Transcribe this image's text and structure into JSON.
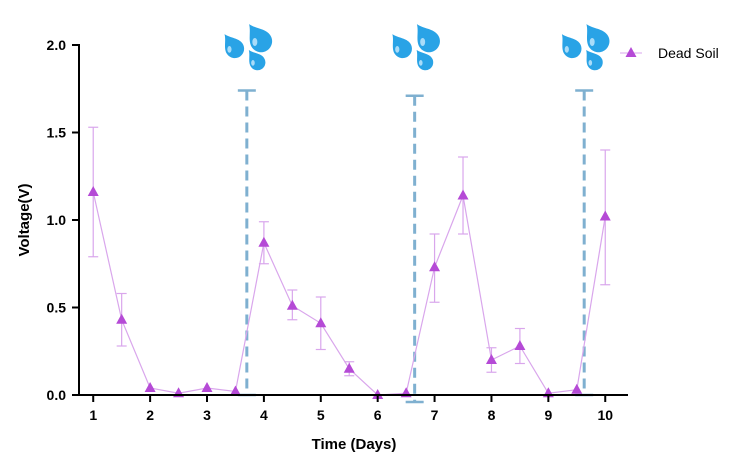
{
  "chart_data": {
    "type": "line",
    "title": "",
    "xlabel": "Time  (Days)",
    "ylabel": "Voltage(V)",
    "xlim": [
      0.75,
      10.4
    ],
    "ylim": [
      0,
      2.0
    ],
    "x_ticks": [
      1,
      2,
      3,
      4,
      5,
      6,
      7,
      8,
      9,
      10
    ],
    "x_tick_labels": [
      "1",
      "2",
      "3",
      "4",
      "5",
      "6",
      "7",
      "8",
      "9",
      "10"
    ],
    "y_ticks": [
      0,
      0.5,
      1.0,
      1.5,
      2.0
    ],
    "y_tick_labels": [
      "0.0",
      "0.5",
      "1.0",
      "1.5",
      "2.0"
    ],
    "grid": false,
    "legend_position": "top-right",
    "series": [
      {
        "name": "Dead Soil",
        "color": "#b54ad6",
        "marker": "triangle",
        "points": [
          {
            "x": 1.0,
            "y": 1.16,
            "err_low": 0.79,
            "err_high": 1.53
          },
          {
            "x": 1.5,
            "y": 0.43,
            "err_low": 0.28,
            "err_high": 0.58
          },
          {
            "x": 2.0,
            "y": 0.04
          },
          {
            "x": 2.5,
            "y": 0.01
          },
          {
            "x": 3.0,
            "y": 0.04
          },
          {
            "x": 3.5,
            "y": 0.02
          },
          {
            "x": 4.0,
            "y": 0.87,
            "err_low": 0.75,
            "err_high": 0.99
          },
          {
            "x": 4.5,
            "y": 0.51,
            "err_low": 0.43,
            "err_high": 0.6
          },
          {
            "x": 5.0,
            "y": 0.41,
            "err_low": 0.26,
            "err_high": 0.56
          },
          {
            "x": 5.5,
            "y": 0.15,
            "err_low": 0.11,
            "err_high": 0.19
          },
          {
            "x": 6.0,
            "y": 0.0
          },
          {
            "x": 6.5,
            "y": 0.01
          },
          {
            "x": 7.0,
            "y": 0.73,
            "err_low": 0.53,
            "err_high": 0.92
          },
          {
            "x": 7.5,
            "y": 1.14,
            "err_low": 0.92,
            "err_high": 1.36
          },
          {
            "x": 8.0,
            "y": 0.2,
            "err_low": 0.13,
            "err_high": 0.27
          },
          {
            "x": 8.5,
            "y": 0.28,
            "err_low": 0.18,
            "err_high": 0.38
          },
          {
            "x": 9.0,
            "y": 0.01
          },
          {
            "x": 9.5,
            "y": 0.03
          },
          {
            "x": 10.0,
            "y": 1.02,
            "err_low": 0.63,
            "err_high": 1.4
          }
        ]
      }
    ],
    "watering_events": [
      {
        "x": 3.7,
        "y_low": 0.0,
        "y_high": 1.74,
        "icon": "water-droplets-icon"
      },
      {
        "x": 6.65,
        "y_low": -0.04,
        "y_high": 1.71,
        "icon": "water-droplets-icon"
      },
      {
        "x": 9.63,
        "y_low": 0.0,
        "y_high": 1.74,
        "icon": "water-droplets-icon"
      }
    ],
    "marker_color": "#b54ad6",
    "line_color": "#d9a6ec",
    "event_line_color": "#7fb0d0",
    "droplet_color": "#29a3e6"
  }
}
